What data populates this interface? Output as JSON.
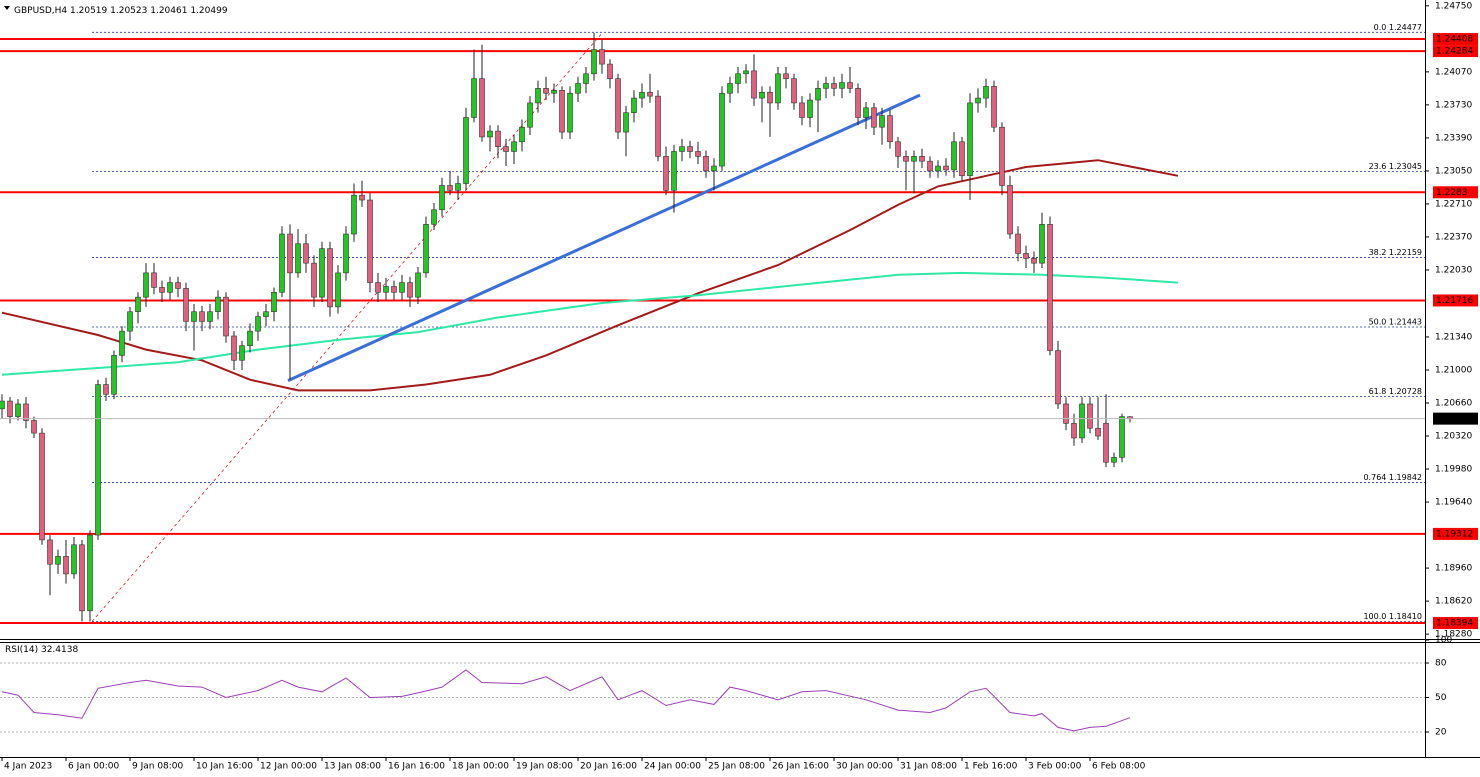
{
  "chart_data": {
    "type": "candlestick",
    "symbol": "GBPUSD,H4",
    "bull_color": "#22c722",
    "bear_color": "#e0607e",
    "ylim": [
      1.1824,
      1.2481
    ],
    "xlim": [
      -0.25,
      177.875
    ],
    "yticks": [
      {
        "value": 1.2475,
        "label": "1.24750"
      },
      {
        "value": 1.2407,
        "label": "1.24070"
      },
      {
        "value": 1.2373,
        "label": "1.23730"
      },
      {
        "value": 1.2339,
        "label": "1.23390"
      },
      {
        "value": 1.2305,
        "label": "1.23050"
      },
      {
        "value": 1.2271,
        "label": "1.22710"
      },
      {
        "value": 1.2237,
        "label": "1.22370"
      },
      {
        "value": 1.2203,
        "label": "1.22030"
      },
      {
        "value": 1.2134,
        "label": "1.21340"
      },
      {
        "value": 1.21,
        "label": "1.21000"
      },
      {
        "value": 1.2066,
        "label": "1.20660"
      },
      {
        "value": 1.2032,
        "label": "1.20320"
      },
      {
        "value": 1.1998,
        "label": "1.19980"
      },
      {
        "value": 1.1964,
        "label": "1.19640"
      },
      {
        "value": 1.1896,
        "label": "1.18960"
      },
      {
        "value": 1.1862,
        "label": "1.18620"
      },
      {
        "value": 1.1828,
        "label": "1.18280"
      }
    ],
    "xticks": [
      {
        "value": 0,
        "label": "4 Jan 2023"
      },
      {
        "value": 8,
        "label": "6 Jan 00:00"
      },
      {
        "value": 16,
        "label": "9 Jan 08:00"
      },
      {
        "value": 24,
        "label": "10 Jan 16:00"
      },
      {
        "value": 32,
        "label": "12 Jan 00:00"
      },
      {
        "value": 40,
        "label": "13 Jan 08:00"
      },
      {
        "value": 48,
        "label": "16 Jan 16:00"
      },
      {
        "value": 56,
        "label": "18 Jan 00:00"
      },
      {
        "value": 64,
        "label": "19 Jan 08:00"
      },
      {
        "value": 72,
        "label": "20 Jan 16:00"
      },
      {
        "value": 80,
        "label": "24 Jan 00:00"
      },
      {
        "value": 88,
        "label": "25 Jan 08:00"
      },
      {
        "value": 96,
        "label": "26 Jan 16:00"
      },
      {
        "value": 104,
        "label": "30 Jan 00:00"
      },
      {
        "value": 112,
        "label": "31 Jan 08:00"
      },
      {
        "value": 120,
        "label": "1 Feb 16:00"
      },
      {
        "value": 128,
        "label": "3 Feb 00:00"
      },
      {
        "value": 136,
        "label": "6 Feb 08:00"
      }
    ],
    "ohlc": [
      [
        1.206,
        1.2075,
        1.205,
        1.2068
      ],
      [
        1.2068,
        1.2072,
        1.2045,
        1.2052
      ],
      [
        1.2052,
        1.207,
        1.2048,
        1.2065
      ],
      [
        1.2065,
        1.2072,
        1.204,
        1.2048
      ],
      [
        1.2048,
        1.2052,
        1.203,
        1.2035
      ],
      [
        1.2035,
        1.204,
        1.192,
        1.1925
      ],
      [
        1.1925,
        1.193,
        1.1868,
        1.19
      ],
      [
        1.19,
        1.1915,
        1.189,
        1.1908
      ],
      [
        1.1908,
        1.1925,
        1.188,
        1.189
      ],
      [
        1.189,
        1.1928,
        1.1885,
        1.192
      ],
      [
        1.192,
        1.1925,
        1.1841,
        1.1852
      ],
      [
        1.1852,
        1.1935,
        1.1841,
        1.193
      ],
      [
        1.193,
        1.209,
        1.1925,
        1.2085
      ],
      [
        1.2085,
        1.2092,
        1.2068,
        1.2075
      ],
      [
        1.2075,
        1.212,
        1.207,
        1.2115
      ],
      [
        1.2115,
        1.2145,
        1.2108,
        1.214
      ],
      [
        1.214,
        1.2165,
        1.213,
        1.216
      ],
      [
        1.216,
        1.218,
        1.2148,
        1.2175
      ],
      [
        1.2175,
        1.221,
        1.2165,
        1.22
      ],
      [
        1.22,
        1.221,
        1.2178,
        1.2185
      ],
      [
        1.2185,
        1.2192,
        1.217,
        1.218
      ],
      [
        1.218,
        1.2196,
        1.2172,
        1.219
      ],
      [
        1.219,
        1.2196,
        1.2175,
        1.2184
      ],
      [
        1.2184,
        1.219,
        1.214,
        1.215
      ],
      [
        1.215,
        1.2168,
        1.212,
        1.216
      ],
      [
        1.216,
        1.2166,
        1.214,
        1.215
      ],
      [
        1.215,
        1.2168,
        1.2142,
        1.216
      ],
      [
        1.216,
        1.2182,
        1.2152,
        1.2175
      ],
      [
        1.2175,
        1.218,
        1.2128,
        1.2135
      ],
      [
        1.2135,
        1.214,
        1.21,
        1.211
      ],
      [
        1.211,
        1.213,
        1.21,
        1.2125
      ],
      [
        1.2125,
        1.2148,
        1.2118,
        1.214
      ],
      [
        1.214,
        1.216,
        1.213,
        1.2155
      ],
      [
        1.2155,
        1.2168,
        1.2145,
        1.216
      ],
      [
        1.216,
        1.2185,
        1.215,
        1.218
      ],
      [
        1.218,
        1.2248,
        1.2175,
        1.224
      ],
      [
        1.224,
        1.225,
        1.209,
        1.22
      ],
      [
        1.22,
        1.2245,
        1.2195,
        1.223
      ],
      [
        1.223,
        1.224,
        1.22,
        1.221
      ],
      [
        1.221,
        1.2218,
        1.2165,
        1.2175
      ],
      [
        1.2175,
        1.2232,
        1.217,
        1.2225
      ],
      [
        1.2225,
        1.2232,
        1.2155,
        1.2165
      ],
      [
        1.2165,
        1.2208,
        1.2158,
        1.22
      ],
      [
        1.22,
        1.2248,
        1.2192,
        1.224
      ],
      [
        1.224,
        1.2292,
        1.2232,
        1.228
      ],
      [
        1.228,
        1.2295,
        1.2268,
        1.2275
      ],
      [
        1.2275,
        1.2282,
        1.218,
        1.219
      ],
      [
        1.219,
        1.22,
        1.217,
        1.218
      ],
      [
        1.218,
        1.2195,
        1.2172,
        1.2186
      ],
      [
        1.2186,
        1.2192,
        1.2172,
        1.218
      ],
      [
        1.218,
        1.2198,
        1.2172,
        1.219
      ],
      [
        1.219,
        1.2196,
        1.2165,
        1.2175
      ],
      [
        1.2175,
        1.2206,
        1.2168,
        1.22
      ],
      [
        1.22,
        1.2258,
        1.2195,
        1.225
      ],
      [
        1.225,
        1.2272,
        1.2244,
        1.2265
      ],
      [
        1.2265,
        1.2298,
        1.2258,
        1.229
      ],
      [
        1.229,
        1.2305,
        1.228,
        1.2285
      ],
      [
        1.2285,
        1.23,
        1.2275,
        1.2292
      ],
      [
        1.2292,
        1.237,
        1.2285,
        1.236
      ],
      [
        1.236,
        1.243,
        1.2355,
        1.24
      ],
      [
        1.24,
        1.2435,
        1.2335,
        1.234
      ],
      [
        1.234,
        1.2352,
        1.2325,
        1.2346
      ],
      [
        1.2346,
        1.2352,
        1.2318,
        1.233
      ],
      [
        1.233,
        1.2338,
        1.231,
        1.2325
      ],
      [
        1.2325,
        1.2342,
        1.2312,
        1.2335
      ],
      [
        1.2335,
        1.2358,
        1.2325,
        1.235
      ],
      [
        1.235,
        1.2382,
        1.2342,
        1.2375
      ],
      [
        1.2375,
        1.2398,
        1.2365,
        1.239
      ],
      [
        1.239,
        1.2402,
        1.2378,
        1.2385
      ],
      [
        1.2385,
        1.2395,
        1.2375,
        1.2388
      ],
      [
        1.2388,
        1.2392,
        1.2338,
        1.2345
      ],
      [
        1.2345,
        1.2392,
        1.2338,
        1.2385
      ],
      [
        1.2385,
        1.2402,
        1.2376,
        1.2395
      ],
      [
        1.2395,
        1.2412,
        1.2385,
        1.2405
      ],
      [
        1.2405,
        1.2447,
        1.2398,
        1.243
      ],
      [
        1.243,
        1.244,
        1.2405,
        1.2415
      ],
      [
        1.2415,
        1.242,
        1.239,
        1.24
      ],
      [
        1.24,
        1.2405,
        1.2338,
        1.2345
      ],
      [
        1.2345,
        1.2372,
        1.232,
        1.2365
      ],
      [
        1.2365,
        1.2388,
        1.2355,
        1.238
      ],
      [
        1.238,
        1.2395,
        1.237,
        1.2386
      ],
      [
        1.2386,
        1.2405,
        1.2375,
        1.2382
      ],
      [
        1.2382,
        1.2388,
        1.2315,
        1.232
      ],
      [
        1.232,
        1.233,
        1.228,
        1.2285
      ],
      [
        1.2285,
        1.2332,
        1.2262,
        1.2325
      ],
      [
        1.2325,
        1.2338,
        1.2315,
        1.233
      ],
      [
        1.233,
        1.2336,
        1.2318,
        1.2325
      ],
      [
        1.2325,
        1.2335,
        1.2312,
        1.232
      ],
      [
        1.232,
        1.2326,
        1.2298,
        1.2305
      ],
      [
        1.2305,
        1.2318,
        1.2285,
        1.231
      ],
      [
        1.231,
        1.2392,
        1.2305,
        1.2385
      ],
      [
        1.2385,
        1.2402,
        1.2375,
        1.2395
      ],
      [
        1.2395,
        1.2412,
        1.2385,
        1.2405
      ],
      [
        1.2405,
        1.2415,
        1.2395,
        1.2408
      ],
      [
        1.2408,
        1.2425,
        1.2372,
        1.238
      ],
      [
        1.238,
        1.2392,
        1.2355,
        1.2386
      ],
      [
        1.2386,
        1.2392,
        1.234,
        1.2375
      ],
      [
        1.2375,
        1.2412,
        1.2368,
        1.2405
      ],
      [
        1.2405,
        1.2412,
        1.239,
        1.24
      ],
      [
        1.24,
        1.2405,
        1.2368,
        1.2375
      ],
      [
        1.2375,
        1.2382,
        1.2352,
        1.236
      ],
      [
        1.236,
        1.2385,
        1.235,
        1.2378
      ],
      [
        1.2378,
        1.2398,
        1.2345,
        1.239
      ],
      [
        1.239,
        1.2402,
        1.238,
        1.2395
      ],
      [
        1.2395,
        1.2402,
        1.2382,
        1.239
      ],
      [
        1.239,
        1.2405,
        1.238,
        1.2396
      ],
      [
        1.2396,
        1.2412,
        1.2385,
        1.239
      ],
      [
        1.239,
        1.2395,
        1.2352,
        1.236
      ],
      [
        1.236,
        1.2376,
        1.2348,
        1.237
      ],
      [
        1.237,
        1.2375,
        1.2342,
        1.235
      ],
      [
        1.235,
        1.237,
        1.2332,
        1.2362
      ],
      [
        1.2362,
        1.2368,
        1.2328,
        1.2335
      ],
      [
        1.2335,
        1.234,
        1.2308,
        1.232
      ],
      [
        1.232,
        1.2326,
        1.2285,
        1.2315
      ],
      [
        1.2315,
        1.2326,
        1.2282,
        1.232
      ],
      [
        1.232,
        1.2328,
        1.2308,
        1.2315
      ],
      [
        1.2315,
        1.232,
        1.2298,
        1.2305
      ],
      [
        1.2305,
        1.2316,
        1.2298,
        1.231
      ],
      [
        1.231,
        1.2318,
        1.23,
        1.2306
      ],
      [
        1.2306,
        1.2345,
        1.2298,
        1.2335
      ],
      [
        1.2335,
        1.234,
        1.2295,
        1.23
      ],
      [
        1.23,
        1.2385,
        1.2275,
        1.2375
      ],
      [
        1.2375,
        1.239,
        1.2365,
        1.238
      ],
      [
        1.238,
        1.24,
        1.237,
        1.2392
      ],
      [
        1.2392,
        1.2398,
        1.2345,
        1.235
      ],
      [
        1.235,
        1.2355,
        1.228,
        1.229
      ],
      [
        1.229,
        1.23,
        1.2235,
        1.224
      ],
      [
        1.224,
        1.2248,
        1.2212,
        1.222
      ],
      [
        1.222,
        1.2228,
        1.2205,
        1.2215
      ],
      [
        1.2215,
        1.2222,
        1.22,
        1.221
      ],
      [
        1.221,
        1.2262,
        1.2205,
        1.225
      ],
      [
        1.225,
        1.2258,
        1.2115,
        1.212
      ],
      [
        1.212,
        1.213,
        1.206,
        1.2065
      ],
      [
        1.2065,
        1.2072,
        1.2038,
        1.2045
      ],
      [
        1.2045,
        1.2055,
        1.2022,
        1.203
      ],
      [
        1.203,
        1.2072,
        1.2025,
        1.2065
      ],
      [
        1.2065,
        1.2072,
        1.2035,
        1.204
      ],
      [
        1.204,
        1.2072,
        1.2028,
        1.2032
      ],
      [
        1.2045,
        1.2075,
        1.2,
        1.2005
      ],
      [
        1.2005,
        1.2015,
        1.2,
        1.201
      ],
      [
        1.201,
        1.2055,
        1.2005,
        1.2052
      ],
      [
        1.20519,
        1.20523,
        1.20461,
        1.20499
      ]
    ],
    "series": [
      {
        "color": "#a31a1a",
        "x": [
          0,
          12,
          18,
          25,
          31,
          37,
          46,
          53,
          61,
          68,
          77,
          87,
          97,
          106,
          112,
          117,
          122,
          128,
          137,
          147
        ],
        "values": [
          1.2159,
          1.2136,
          1.2121,
          1.211,
          1.209,
          1.2079,
          1.2079,
          1.2085,
          1.2095,
          1.2115,
          1.2146,
          1.2179,
          1.2208,
          1.2244,
          1.227,
          1.2289,
          1.2298,
          1.2309,
          1.2316,
          1.23
        ]
      },
      {
        "color": "#2ee8a6",
        "x": [
          0,
          12,
          22,
          32,
          42,
          52,
          62,
          75,
          87,
          100,
          112,
          120,
          130,
          138,
          147
        ],
        "values": [
          1.2095,
          1.2102,
          1.2108,
          1.2121,
          1.2131,
          1.2139,
          1.2154,
          1.2169,
          1.2177,
          1.2188,
          1.2198,
          1.22,
          1.2198,
          1.2195,
          1.219
        ]
      }
    ],
    "levels": [
      1.24408,
      1.24284,
      1.2283,
      1.21716,
      1.19312,
      1.18394
    ],
    "level_color": "#ff0000",
    "fib": {
      "color": "#1e3cb4",
      "x": [
        11.25,
        75.1
      ],
      "levels": [
        {
          "value": 1.24477,
          "label": "0.0 1.24477"
        },
        {
          "value": 1.23045,
          "label": "23.6 1.23045"
        },
        {
          "value": 1.22159,
          "label": "38.2 1.22159"
        },
        {
          "value": 1.21443,
          "label": "50.0 1.21443"
        },
        {
          "value": 1.20728,
          "label": "61.8 1.20728"
        },
        {
          "value": 1.19842,
          "label": "0.764 1.19842"
        },
        {
          "value": 1.1841,
          "label": "100.0 1.18410"
        }
      ]
    },
    "trendline": {
      "color": "#3a6fd8",
      "x": [
        35.75,
        114.75
      ],
      "y": [
        1.2089,
        1.2383
      ]
    },
    "rsi": {
      "label": "RSI(14)",
      "color": "#9b3fb5",
      "ylim": [
        0,
        100
      ],
      "yticks": [
        100,
        80,
        50,
        20
      ],
      "levels": [
        80,
        50,
        20
      ],
      "x": [
        0,
        2,
        4,
        7,
        10,
        12,
        16,
        18,
        22,
        25,
        28,
        32,
        35,
        37,
        40,
        43,
        46,
        50,
        52,
        55,
        58,
        60,
        65,
        68,
        71,
        75,
        77,
        80,
        83,
        86,
        89,
        91,
        93,
        97,
        100,
        103,
        108,
        112,
        116,
        118,
        121,
        123,
        126,
        129,
        130,
        132,
        134,
        136,
        138,
        141
      ],
      "values": [
        55,
        52,
        37,
        35,
        32,
        58,
        63,
        65,
        60,
        59,
        50,
        56,
        65,
        59,
        55,
        67,
        50,
        51,
        54,
        59,
        74,
        63,
        62,
        68,
        56,
        68,
        48,
        56,
        43,
        48,
        44,
        59,
        56,
        48,
        55,
        56,
        48,
        39,
        37,
        41,
        55,
        58,
        37,
        34,
        36,
        24,
        21,
        24,
        25,
        32.4138
      ]
    }
  }
}
